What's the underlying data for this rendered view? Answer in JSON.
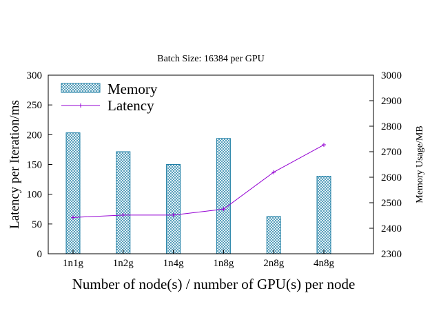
{
  "chart_data": {
    "type": "bar",
    "title": "Batch Size: 16384 per GPU",
    "xlabel": "Number of node(s) / number of GPU(s) per node",
    "ylabel_left": "Latency per Iteration/ms",
    "ylabel_right": "Memory Usage/MB",
    "categories": [
      "1n1g",
      "1n2g",
      "1n4g",
      "1n8g",
      "2n8g",
      "4n8g"
    ],
    "ylim_left": [
      0,
      300
    ],
    "yticks_left": [
      0,
      50,
      100,
      150,
      200,
      250,
      300
    ],
    "ylim_right": [
      2300,
      3000
    ],
    "yticks_right": [
      2300,
      2400,
      2500,
      2600,
      2700,
      2800,
      2900,
      3000
    ],
    "grid": false,
    "legend_position": "top-left",
    "series": [
      {
        "name": "Memory",
        "kind": "bar",
        "axis": "right",
        "values": [
          2774,
          2700,
          2650,
          2752,
          2446,
          2604
        ],
        "color": "#1f7fa6"
      },
      {
        "name": "Latency",
        "kind": "line",
        "axis": "left",
        "values": [
          61,
          65,
          65,
          75,
          137,
          183
        ],
        "color": "#9400d3"
      }
    ]
  }
}
